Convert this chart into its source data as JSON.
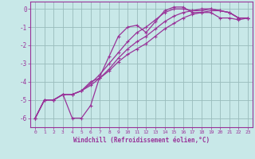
{
  "xlabel": "Windchill (Refroidissement éolien,°C)",
  "background_color": "#c8e8e8",
  "line_color": "#993399",
  "grid_color": "#99bbbb",
  "xlim": [
    -0.5,
    23.5
  ],
  "ylim": [
    -6.5,
    0.4
  ],
  "xticks": [
    0,
    1,
    2,
    3,
    4,
    5,
    6,
    7,
    8,
    9,
    10,
    11,
    12,
    13,
    14,
    15,
    16,
    17,
    18,
    19,
    20,
    21,
    22,
    23
  ],
  "yticks": [
    0,
    -1,
    -2,
    -3,
    -4,
    -5,
    -6
  ],
  "line1_x": [
    0,
    1,
    2,
    3,
    4,
    5,
    6,
    7,
    8,
    9,
    10,
    11,
    12,
    13,
    14,
    15,
    16,
    17,
    18,
    19,
    20,
    21,
    22,
    23
  ],
  "line1_y": [
    -6.0,
    -5.0,
    -5.0,
    -4.7,
    -6.0,
    -6.0,
    -5.3,
    -3.7,
    -2.6,
    -1.5,
    -1.0,
    -0.9,
    -1.3,
    -0.7,
    -0.1,
    0.1,
    0.1,
    -0.2,
    -0.2,
    -0.2,
    -0.5,
    -0.5,
    -0.6,
    -0.5
  ],
  "line2_x": [
    0,
    1,
    2,
    3,
    4,
    5,
    6,
    7,
    8,
    9,
    10,
    11,
    12,
    13,
    14,
    15,
    16,
    17,
    18,
    19,
    20,
    21,
    22,
    23
  ],
  "line2_y": [
    -6.0,
    -5.0,
    -5.0,
    -4.7,
    -4.7,
    -4.5,
    -4.0,
    -3.8,
    -3.4,
    -2.9,
    -2.5,
    -2.2,
    -1.9,
    -1.5,
    -1.1,
    -0.8,
    -0.5,
    -0.3,
    -0.2,
    -0.1,
    -0.1,
    -0.2,
    -0.5,
    -0.5
  ],
  "line3_x": [
    0,
    1,
    2,
    3,
    4,
    5,
    6,
    7,
    8,
    9,
    10,
    11,
    12,
    13,
    14,
    15,
    16,
    17,
    18,
    19,
    20,
    21,
    22,
    23
  ],
  "line3_y": [
    -6.0,
    -5.0,
    -5.0,
    -4.7,
    -4.7,
    -4.5,
    -4.2,
    -3.8,
    -3.3,
    -2.7,
    -2.2,
    -1.8,
    -1.5,
    -1.1,
    -0.7,
    -0.4,
    -0.2,
    -0.1,
    0.0,
    0.0,
    -0.1,
    -0.2,
    -0.5,
    -0.5
  ],
  "line4_x": [
    0,
    1,
    2,
    3,
    4,
    5,
    6,
    7,
    8,
    9,
    10,
    11,
    12,
    13,
    14,
    15,
    16,
    17,
    18,
    19,
    20,
    21,
    22,
    23
  ],
  "line4_y": [
    -6.0,
    -5.0,
    -5.0,
    -4.7,
    -4.7,
    -4.5,
    -4.1,
    -3.6,
    -3.0,
    -2.4,
    -1.8,
    -1.3,
    -1.0,
    -0.6,
    -0.2,
    0.0,
    0.0,
    -0.1,
    -0.1,
    0.0,
    -0.1,
    -0.2,
    -0.5,
    -0.5
  ]
}
